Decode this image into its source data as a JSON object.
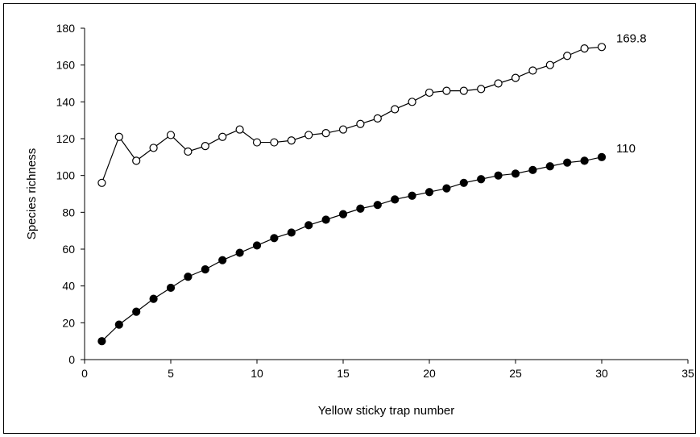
{
  "chart_data": {
    "type": "line",
    "xlabel": "Yellow sticky trap number",
    "ylabel": "Species richness",
    "xlim": [
      0,
      35
    ],
    "ylim": [
      0,
      180
    ],
    "xticks": [
      0,
      5,
      10,
      15,
      20,
      25,
      30,
      35
    ],
    "yticks": [
      0,
      20,
      40,
      60,
      80,
      100,
      120,
      140,
      160,
      180
    ],
    "grid": false,
    "legend": "none",
    "x": [
      1,
      2,
      3,
      4,
      5,
      6,
      7,
      8,
      9,
      10,
      11,
      12,
      13,
      14,
      15,
      16,
      17,
      18,
      19,
      20,
      21,
      22,
      23,
      24,
      25,
      26,
      27,
      28,
      29,
      30
    ],
    "series": [
      {
        "marker": "open-circle",
        "end_label": "169.8",
        "values": [
          96,
          121,
          108,
          115,
          122,
          113,
          116,
          121,
          125,
          118,
          118,
          119,
          122,
          123,
          125,
          128,
          131,
          136,
          140,
          145,
          146,
          146,
          147,
          150,
          153,
          157,
          160,
          165,
          169,
          169.8
        ]
      },
      {
        "marker": "filled-circle",
        "end_label": "110",
        "values": [
          10,
          19,
          26,
          33,
          39,
          45,
          49,
          54,
          58,
          62,
          66,
          69,
          73,
          76,
          79,
          82,
          84,
          87,
          89,
          91,
          93,
          96,
          98,
          100,
          101,
          103,
          105,
          107,
          108,
          110
        ]
      }
    ]
  }
}
